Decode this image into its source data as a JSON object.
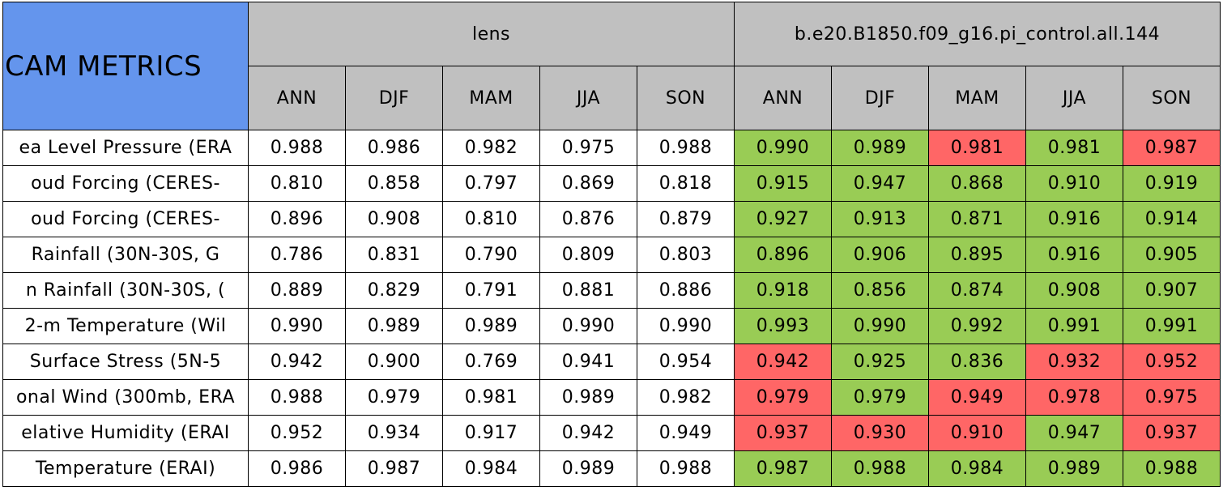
{
  "table": {
    "corner": "CAM METRICS",
    "groups": [
      "lens",
      "b.e20.B1850.f09_g16.pi_control.all.144"
    ],
    "columns": [
      "ANN",
      "DJF",
      "MAM",
      "JJA",
      "SON",
      "ANN",
      "DJF",
      "MAM",
      "JJA",
      "SON"
    ],
    "header_color": "#c0c0c0",
    "corner_color": "#6495ed",
    "rows": [
      {
        "label": "ea Level Pressure (ERA",
        "values": [
          "0.988",
          "0.986",
          "0.982",
          "0.975",
          "0.988",
          "0.990",
          "0.989",
          "0.981",
          "0.981",
          "0.987"
        ],
        "colors": [
          "#ffffff",
          "#ffffff",
          "#ffffff",
          "#ffffff",
          "#ffffff",
          "#99cc55",
          "#99cc55",
          "#ff6666",
          "#99cc55",
          "#ff6666"
        ]
      },
      {
        "label": "oud Forcing (CERES-",
        "values": [
          "0.810",
          "0.858",
          "0.797",
          "0.869",
          "0.818",
          "0.915",
          "0.947",
          "0.868",
          "0.910",
          "0.919"
        ],
        "colors": [
          "#ffffff",
          "#ffffff",
          "#ffffff",
          "#ffffff",
          "#ffffff",
          "#99cc55",
          "#99cc55",
          "#99cc55",
          "#99cc55",
          "#99cc55"
        ]
      },
      {
        "label": "oud Forcing (CERES-",
        "values": [
          "0.896",
          "0.908",
          "0.810",
          "0.876",
          "0.879",
          "0.927",
          "0.913",
          "0.871",
          "0.916",
          "0.914"
        ],
        "colors": [
          "#ffffff",
          "#ffffff",
          "#ffffff",
          "#ffffff",
          "#ffffff",
          "#99cc55",
          "#99cc55",
          "#99cc55",
          "#99cc55",
          "#99cc55"
        ]
      },
      {
        "label": "Rainfall (30N-30S, G",
        "values": [
          "0.786",
          "0.831",
          "0.790",
          "0.809",
          "0.803",
          "0.896",
          "0.906",
          "0.895",
          "0.916",
          "0.905"
        ],
        "colors": [
          "#ffffff",
          "#ffffff",
          "#ffffff",
          "#ffffff",
          "#ffffff",
          "#99cc55",
          "#99cc55",
          "#99cc55",
          "#99cc55",
          "#99cc55"
        ]
      },
      {
        "label": "n Rainfall (30N-30S, (",
        "values": [
          "0.889",
          "0.829",
          "0.791",
          "0.881",
          "0.886",
          "0.918",
          "0.856",
          "0.874",
          "0.908",
          "0.907"
        ],
        "colors": [
          "#ffffff",
          "#ffffff",
          "#ffffff",
          "#ffffff",
          "#ffffff",
          "#99cc55",
          "#99cc55",
          "#99cc55",
          "#99cc55",
          "#99cc55"
        ]
      },
      {
        "label": "2-m Temperature (Wil",
        "values": [
          "0.990",
          "0.989",
          "0.989",
          "0.990",
          "0.990",
          "0.993",
          "0.990",
          "0.992",
          "0.991",
          "0.991"
        ],
        "colors": [
          "#ffffff",
          "#ffffff",
          "#ffffff",
          "#ffffff",
          "#ffffff",
          "#99cc55",
          "#99cc55",
          "#99cc55",
          "#99cc55",
          "#99cc55"
        ]
      },
      {
        "label": "Surface Stress (5N-5",
        "values": [
          "0.942",
          "0.900",
          "0.769",
          "0.941",
          "0.954",
          "0.942",
          "0.925",
          "0.836",
          "0.932",
          "0.952"
        ],
        "colors": [
          "#ffffff",
          "#ffffff",
          "#ffffff",
          "#ffffff",
          "#ffffff",
          "#ff6666",
          "#99cc55",
          "#99cc55",
          "#ff6666",
          "#ff6666"
        ]
      },
      {
        "label": "onal Wind (300mb, ERA",
        "values": [
          "0.988",
          "0.979",
          "0.981",
          "0.989",
          "0.982",
          "0.979",
          "0.979",
          "0.949",
          "0.978",
          "0.975"
        ],
        "colors": [
          "#ffffff",
          "#ffffff",
          "#ffffff",
          "#ffffff",
          "#ffffff",
          "#ff6666",
          "#99cc55",
          "#ff6666",
          "#ff6666",
          "#ff6666"
        ]
      },
      {
        "label": "elative Humidity (ERAI",
        "values": [
          "0.952",
          "0.934",
          "0.917",
          "0.942",
          "0.949",
          "0.937",
          "0.930",
          "0.910",
          "0.947",
          "0.937"
        ],
        "colors": [
          "#ffffff",
          "#ffffff",
          "#ffffff",
          "#ffffff",
          "#ffffff",
          "#ff6666",
          "#ff6666",
          "#ff6666",
          "#99cc55",
          "#ff6666"
        ]
      },
      {
        "label": "Temperature (ERAI)",
        "values": [
          "0.986",
          "0.987",
          "0.984",
          "0.989",
          "0.988",
          "0.987",
          "0.988",
          "0.984",
          "0.989",
          "0.988"
        ],
        "colors": [
          "#ffffff",
          "#ffffff",
          "#ffffff",
          "#ffffff",
          "#ffffff",
          "#99cc55",
          "#99cc55",
          "#99cc55",
          "#99cc55",
          "#99cc55"
        ]
      }
    ]
  }
}
